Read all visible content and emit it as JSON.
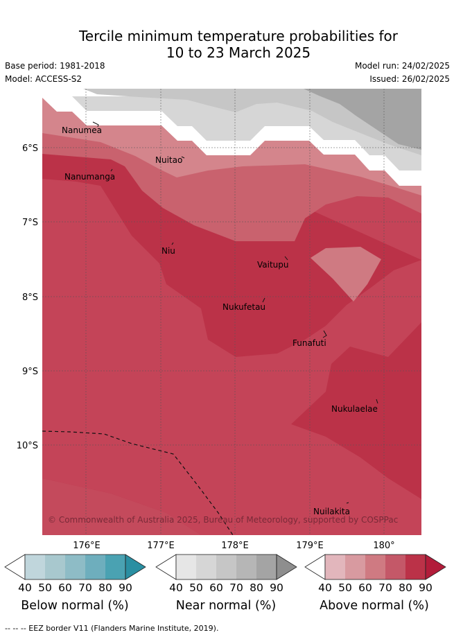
{
  "title_line1": "Tercile minimum temperature probabilities for",
  "title_line2": "10 to 23 March 2025",
  "base_period": "Base period: 1981-2018",
  "model": "Model: ACCESS-S2",
  "model_run": "Model run: 24/02/2025",
  "issued": "Issued: 26/02/2025",
  "y_ticks": [
    "6°S",
    "7°S",
    "8°S",
    "9°S",
    "10°S"
  ],
  "x_ticks": [
    "176°E",
    "177°E",
    "178°E",
    "179°E",
    "180°"
  ],
  "places": [
    "Nanumea",
    "Nuitao",
    "Nanumanga",
    "Niu",
    "Vaitupu",
    "Nukufetau",
    "Funafuti",
    "Nukulaelae",
    "Nuilakita"
  ],
  "copyright": "© Commonwealth of Australia 2025, Bureau of Meteorology, supported by COSPPac",
  "colorbars": [
    {
      "title": "Below normal (%)",
      "ticks": [
        "40",
        "50",
        "60",
        "70",
        "80",
        "90"
      ],
      "colors": [
        "#c0d6dc",
        "#a8c8ce",
        "#8ebcc6",
        "#6eaebd",
        "#4aa2b2",
        "#2a8fa2"
      ]
    },
    {
      "title": "Near normal (%)",
      "ticks": [
        "40",
        "50",
        "60",
        "70",
        "80",
        "90"
      ],
      "colors": [
        "#e6e6e6",
        "#d6d6d6",
        "#c6c6c6",
        "#b6b6b6",
        "#a4a4a4",
        "#8e8e8e"
      ]
    },
    {
      "title": "Above normal (%)",
      "ticks": [
        "40",
        "50",
        "60",
        "70",
        "80",
        "90"
      ],
      "colors": [
        "#e2b6bc",
        "#d89aa0",
        "#cf7a82",
        "#c45868",
        "#bb3248",
        "#b21c3a"
      ]
    }
  ],
  "footer": "-- -- -- EEZ border V11 (Flanders Marine Institute, 2019)."
}
